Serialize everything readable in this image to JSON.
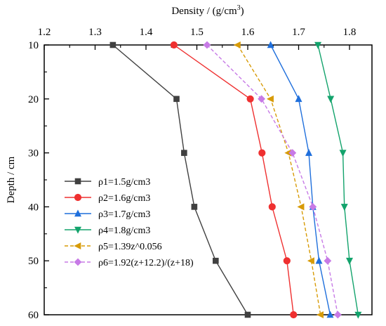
{
  "chart_data": {
    "type": "line",
    "xlabel": "Density / (g/cm3)",
    "ylabel": "Depth / cm",
    "xlim": [
      1.2,
      1.85
    ],
    "ylim": [
      60,
      10
    ],
    "x_axis_position": "top",
    "y_axis_inverted": true,
    "x_ticks": [
      "1.2",
      "1.3",
      "1.4",
      "1.5",
      "1.6",
      "1.7",
      "1.8"
    ],
    "y_ticks": [
      "10",
      "20",
      "30",
      "40",
      "50",
      "60"
    ],
    "grid": false,
    "legend_position": "bottom-left",
    "depths": [
      10,
      20,
      30,
      40,
      50,
      60
    ],
    "series": [
      {
        "name": "ρ1=1.5g/cm3",
        "color": "#404040",
        "marker": "square",
        "dash": "solid",
        "x": [
          1.335,
          1.46,
          1.475,
          1.495,
          1.537,
          1.6
        ],
        "y": [
          10,
          20,
          30,
          40,
          50,
          60
        ]
      },
      {
        "name": "ρ2=1.6g/cm3",
        "color": "#ef3030",
        "marker": "circle",
        "dash": "solid",
        "x": [
          1.455,
          1.605,
          1.628,
          1.648,
          1.677,
          1.69
        ],
        "y": [
          10,
          20,
          30,
          40,
          50,
          60
        ]
      },
      {
        "name": "ρ3=1.7g/cm3",
        "color": "#1f6fdc",
        "marker": "triangle-up",
        "dash": "solid",
        "x": [
          1.645,
          1.7,
          1.72,
          1.728,
          1.74,
          1.762
        ],
        "y": [
          10,
          20,
          30,
          40,
          50,
          60
        ]
      },
      {
        "name": "ρ4=1.8g/cm3",
        "color": "#13a36c",
        "marker": "triangle-down",
        "dash": "solid",
        "x": [
          1.738,
          1.763,
          1.787,
          1.79,
          1.8,
          1.817
        ],
        "y": [
          10,
          20,
          30,
          40,
          50,
          60
        ]
      },
      {
        "name": "ρ5=1.39z^0.056",
        "color": "#d79b07",
        "marker": "triangle-left",
        "dash": "dashed",
        "x": [
          1.58,
          1.645,
          1.68,
          1.705,
          1.725,
          1.743
        ],
        "y": [
          10,
          20,
          30,
          40,
          50,
          60
        ]
      },
      {
        "name": "ρ6=1.92(z+12.2)/(z+18)",
        "color": "#c77ae6",
        "marker": "diamond",
        "dash": "dashed",
        "x": [
          1.52,
          1.627,
          1.688,
          1.728,
          1.757,
          1.777
        ],
        "y": [
          10,
          20,
          30,
          40,
          50,
          60
        ]
      }
    ]
  }
}
